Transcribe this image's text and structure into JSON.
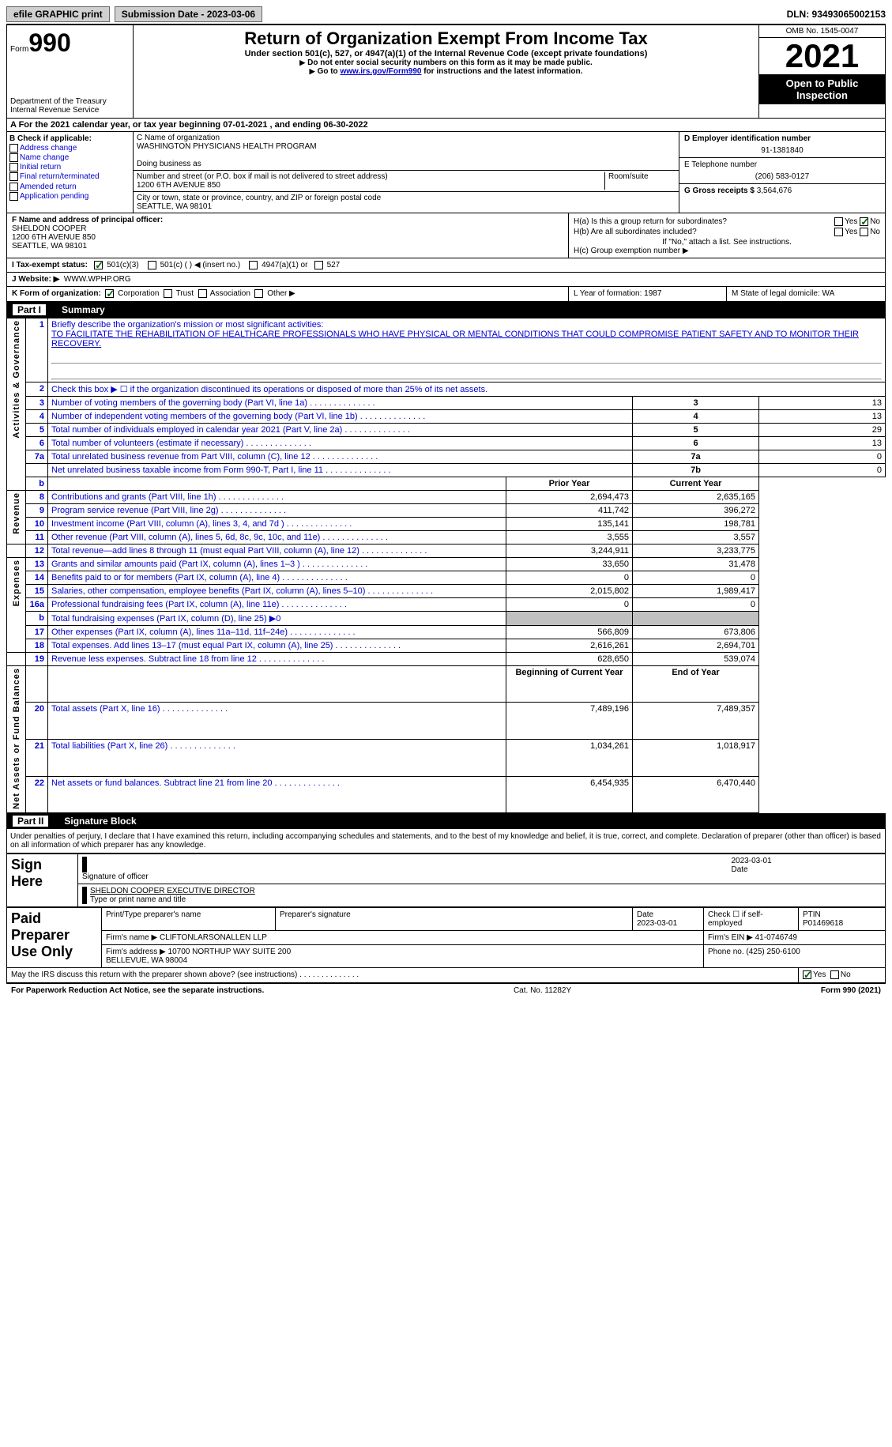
{
  "topbar": {
    "btn1": "efile GRAPHIC print",
    "btn2": "Submission Date - 2023-03-06",
    "dln": "DLN: 93493065002153"
  },
  "header": {
    "form_label": "Form",
    "form_num": "990",
    "dept": "Department of the Treasury Internal Revenue Service",
    "title": "Return of Organization Exempt From Income Tax",
    "subtitle": "Under section 501(c), 527, or 4947(a)(1) of the Internal Revenue Code (except private foundations)",
    "warn1": "Do not enter social security numbers on this form as it may be made public.",
    "warn2_pre": "Go to ",
    "warn2_link": "www.irs.gov/Form990",
    "warn2_post": " for instructions and the latest information.",
    "omb": "OMB No. 1545-0047",
    "year": "2021",
    "open": "Open to Public Inspection"
  },
  "row_a": {
    "text": "A For the 2021 calendar year, or tax year beginning 07-01-2021    , and ending 06-30-2022"
  },
  "col_b": {
    "label": "B Check if applicable:",
    "opts": [
      "Address change",
      "Name change",
      "Initial return",
      "Final return/terminated",
      "Amended return",
      "Application pending"
    ]
  },
  "col_c": {
    "name_lbl": "C Name of organization",
    "name": "WASHINGTON PHYSICIANS HEALTH PROGRAM",
    "dba_lbl": "Doing business as",
    "dba": "",
    "addr_lbl": "Number and street (or P.O. box if mail is not delivered to street address)",
    "room_lbl": "Room/suite",
    "addr": "1200 6TH AVENUE 850",
    "city_lbl": "City or town, state or province, country, and ZIP or foreign postal code",
    "city": "SEATTLE, WA  98101"
  },
  "col_d": {
    "ein_lbl": "D Employer identification number",
    "ein": "91-1381840",
    "tel_lbl": "E Telephone number",
    "tel": "(206) 583-0127",
    "gross_lbl": "G Gross receipts $",
    "gross": "3,564,676"
  },
  "col_f": {
    "lbl": "F Name and address of principal officer:",
    "name": "SHELDON COOPER",
    "addr1": "1200 6TH AVENUE 850",
    "addr2": "SEATTLE, WA  98101"
  },
  "col_h": {
    "a_lbl": "H(a)  Is this a group return for subordinates?",
    "a_yes": "Yes",
    "a_no": "No",
    "b_lbl": "H(b)  Are all subordinates included?",
    "b_yes": "Yes",
    "b_no": "No",
    "b_note": "If \"No,\" attach a list. See instructions.",
    "c_lbl": "H(c)  Group exemption number ▶"
  },
  "row_i": {
    "lbl": "I  Tax-exempt status:",
    "o1": "501(c)(3)",
    "o2": "501(c) (  ) ◀ (insert no.)",
    "o3": "4947(a)(1) or",
    "o4": "527"
  },
  "row_j": {
    "lbl": "J  Website: ▶",
    "val": "WWW.WPHP.ORG"
  },
  "row_k": {
    "k_lbl": "K Form of organization:",
    "k1": "Corporation",
    "k2": "Trust",
    "k3": "Association",
    "k4": "Other ▶",
    "l": "L Year of formation: 1987",
    "m": "M State of legal domicile: WA"
  },
  "part1": {
    "num": "Part I",
    "title": "Summary"
  },
  "summary": {
    "l1_lbl": "Briefly describe the organization's mission or most significant activities:",
    "l1_val": "TO FACILITATE THE REHABILITATION OF HEALTHCARE PROFESSIONALS WHO HAVE PHYSICAL OR MENTAL CONDITIONS THAT COULD COMPROMISE PATIENT SAFETY AND TO MONITOR THEIR RECOVERY.",
    "l2": "Check this box ▶ ☐  if the organization discontinued its operations or disposed of more than 25% of its net assets.",
    "lines_top": [
      {
        "n": "3",
        "d": "Number of voting members of the governing body (Part VI, line 1a)",
        "box": "3",
        "v": "13"
      },
      {
        "n": "4",
        "d": "Number of independent voting members of the governing body (Part VI, line 1b)",
        "box": "4",
        "v": "13"
      },
      {
        "n": "5",
        "d": "Total number of individuals employed in calendar year 2021 (Part V, line 2a)",
        "box": "5",
        "v": "29"
      },
      {
        "n": "6",
        "d": "Total number of volunteers (estimate if necessary)",
        "box": "6",
        "v": "13"
      },
      {
        "n": "7a",
        "d": "Total unrelated business revenue from Part VIII, column (C), line 12",
        "box": "7a",
        "v": "0"
      },
      {
        "n": "",
        "d": "Net unrelated business taxable income from Form 990-T, Part I, line 11",
        "box": "7b",
        "v": "0"
      }
    ],
    "hdr_prior": "Prior Year",
    "hdr_curr": "Current Year",
    "rev": [
      {
        "n": "8",
        "d": "Contributions and grants (Part VIII, line 1h)",
        "p": "2,694,473",
        "c": "2,635,165"
      },
      {
        "n": "9",
        "d": "Program service revenue (Part VIII, line 2g)",
        "p": "411,742",
        "c": "396,272"
      },
      {
        "n": "10",
        "d": "Investment income (Part VIII, column (A), lines 3, 4, and 7d )",
        "p": "135,141",
        "c": "198,781"
      },
      {
        "n": "11",
        "d": "Other revenue (Part VIII, column (A), lines 5, 6d, 8c, 9c, 10c, and 11e)",
        "p": "3,555",
        "c": "3,557"
      },
      {
        "n": "12",
        "d": "Total revenue—add lines 8 through 11 (must equal Part VIII, column (A), line 12)",
        "p": "3,244,911",
        "c": "3,233,775"
      }
    ],
    "exp": [
      {
        "n": "13",
        "d": "Grants and similar amounts paid (Part IX, column (A), lines 1–3 )",
        "p": "33,650",
        "c": "31,478"
      },
      {
        "n": "14",
        "d": "Benefits paid to or for members (Part IX, column (A), line 4)",
        "p": "0",
        "c": "0"
      },
      {
        "n": "15",
        "d": "Salaries, other compensation, employee benefits (Part IX, column (A), lines 5–10)",
        "p": "2,015,802",
        "c": "1,989,417"
      },
      {
        "n": "16a",
        "d": "Professional fundraising fees (Part IX, column (A), line 11e)",
        "p": "0",
        "c": "0"
      },
      {
        "n": "b",
        "d": "Total fundraising expenses (Part IX, column (D), line 25) ▶0",
        "p": "",
        "c": "",
        "gray": true
      },
      {
        "n": "17",
        "d": "Other expenses (Part IX, column (A), lines 11a–11d, 11f–24e)",
        "p": "566,809",
        "c": "673,806"
      },
      {
        "n": "18",
        "d": "Total expenses. Add lines 13–17 (must equal Part IX, column (A), line 25)",
        "p": "2,616,261",
        "c": "2,694,701"
      },
      {
        "n": "19",
        "d": "Revenue less expenses. Subtract line 18 from line 12",
        "p": "628,650",
        "c": "539,074"
      }
    ],
    "hdr_beg": "Beginning of Current Year",
    "hdr_end": "End of Year",
    "net": [
      {
        "n": "20",
        "d": "Total assets (Part X, line 16)",
        "p": "7,489,196",
        "c": "7,489,357"
      },
      {
        "n": "21",
        "d": "Total liabilities (Part X, line 26)",
        "p": "1,034,261",
        "c": "1,018,917"
      },
      {
        "n": "22",
        "d": "Net assets or fund balances. Subtract line 21 from line 20",
        "p": "6,454,935",
        "c": "6,470,440"
      }
    ],
    "vlabels": {
      "ag": "Activities & Governance",
      "rev": "Revenue",
      "exp": "Expenses",
      "net": "Net Assets or Fund Balances"
    }
  },
  "part2": {
    "num": "Part II",
    "title": "Signature Block"
  },
  "sig": {
    "intro": "Under penalties of perjury, I declare that I have examined this return, including accompanying schedules and statements, and to the best of my knowledge and belief, it is true, correct, and complete. Declaration of preparer (other than officer) is based on all information of which preparer has any knowledge.",
    "sign_here": "Sign Here",
    "sig_officer": "Signature of officer",
    "sig_date": "2023-03-01",
    "date_lbl": "Date",
    "name_title": "SHELDON COOPER  EXECUTIVE DIRECTOR",
    "name_title_lbl": "Type or print name and title",
    "paid": "Paid Preparer Use Only",
    "pt_name_lbl": "Print/Type preparer's name",
    "pt_sig_lbl": "Preparer's signature",
    "pt_date_lbl": "Date",
    "pt_date": "2023-03-01",
    "self_lbl": "Check ☐ if self-employed",
    "ptin_lbl": "PTIN",
    "ptin": "P01469618",
    "firm_name_lbl": "Firm's name    ▶",
    "firm_name": "CLIFTONLARSONALLEN LLP",
    "firm_ein_lbl": "Firm's EIN ▶",
    "firm_ein": "41-0746749",
    "firm_addr_lbl": "Firm's address ▶",
    "firm_addr": "10700 NORTHUP WAY SUITE 200\nBELLEVUE, WA  98004",
    "phone_lbl": "Phone no.",
    "phone": "(425) 250-6100",
    "discuss": "May the IRS discuss this return with the preparer shown above? (see instructions)",
    "yes": "Yes",
    "no": "No"
  },
  "footer": {
    "left": "For Paperwork Reduction Act Notice, see the separate instructions.",
    "mid": "Cat. No. 11282Y",
    "right": "Form 990 (2021)"
  }
}
